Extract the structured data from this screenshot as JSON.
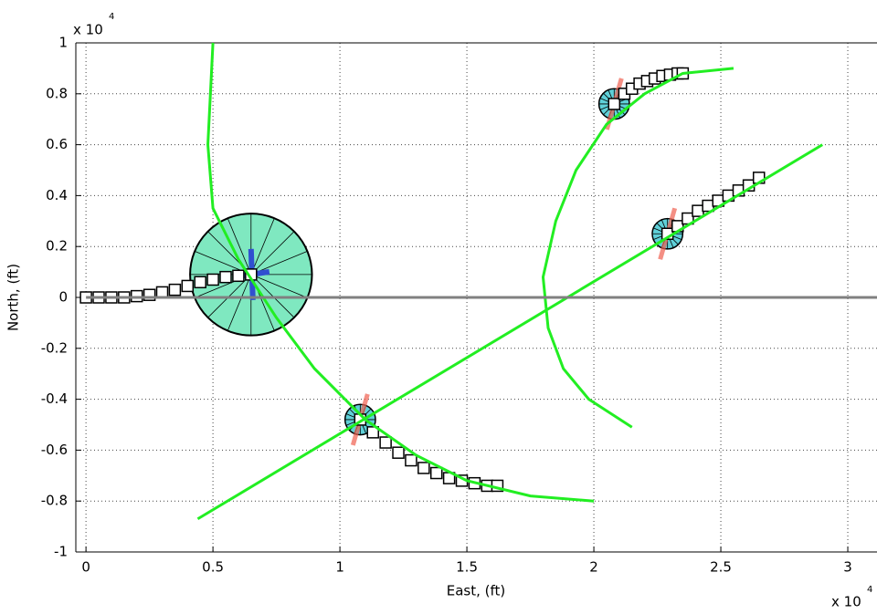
{
  "chart_data": {
    "type": "line",
    "x_label": "East, (ft)",
    "y_label": "North, (ft)",
    "x_multiplier": "x 10",
    "x_exponent": "4",
    "y_multiplier": "x 10",
    "y_exponent": "4",
    "xlim": [
      -0.04,
      3.115
    ],
    "ylim": [
      -1,
      1
    ],
    "xticks": [
      0,
      0.5,
      1,
      1.5,
      2,
      2.5,
      3
    ],
    "yticks": [
      -1,
      -0.8,
      -0.6,
      -0.4,
      -0.2,
      0,
      0.2,
      0.4,
      0.6,
      0.8,
      1
    ],
    "grid": true,
    "series": [
      {
        "color": "#000000",
        "marker": "square",
        "x": [
          0.65,
          0.6,
          0.55,
          0.5,
          0.45,
          0.4,
          0.35,
          0.3,
          0.25,
          0.2,
          0.15,
          0.1,
          0.05,
          0
        ],
        "values": [
          0.09,
          0.085,
          0.08,
          0.07,
          0.06,
          0.045,
          0.03,
          0.02,
          0.01,
          0.005,
          0,
          0,
          0,
          0
        ]
      },
      {
        "color": "#000000",
        "marker": "square",
        "x": [
          1.08,
          1.13,
          1.18,
          1.23,
          1.28,
          1.33,
          1.38,
          1.43,
          1.48,
          1.53,
          1.58,
          1.62
        ],
        "values": [
          -0.48,
          -0.53,
          -0.57,
          -0.61,
          -0.64,
          -0.67,
          -0.69,
          -0.71,
          -0.72,
          -0.73,
          -0.74,
          -0.74
        ]
      },
      {
        "color": "#000000",
        "marker": "square",
        "x": [
          2.08,
          2.12,
          2.15,
          2.18,
          2.21,
          2.24,
          2.27,
          2.3,
          2.33,
          2.35
        ],
        "values": [
          0.76,
          0.8,
          0.82,
          0.84,
          0.85,
          0.86,
          0.87,
          0.875,
          0.88,
          0.88
        ]
      },
      {
        "color": "#000000",
        "marker": "square",
        "x": [
          2.29,
          2.33,
          2.37,
          2.41,
          2.45,
          2.49,
          2.53,
          2.57,
          2.61,
          2.65
        ],
        "values": [
          0.25,
          0.28,
          0.31,
          0.34,
          0.36,
          0.38,
          0.4,
          0.42,
          0.44,
          0.47
        ]
      },
      {
        "color": "#22ee22",
        "marker": "none",
        "x": [
          0.44,
          2.9
        ],
        "values": [
          -0.87,
          0.6
        ]
      },
      {
        "color": "#22ee22",
        "marker": "none",
        "x": [
          0.5,
          0.48,
          0.5,
          0.6,
          0.75,
          0.9,
          1.1,
          1.3,
          1.5,
          1.75,
          2.0
        ],
        "values": [
          1.0,
          0.6,
          0.35,
          0.15,
          -0.08,
          -0.28,
          -0.48,
          -0.62,
          -0.72,
          -0.78,
          -0.8
        ]
      },
      {
        "color": "#22ee22",
        "marker": "none",
        "x": [
          2.55,
          2.35,
          2.2,
          2.05,
          1.93,
          1.85,
          1.8,
          1.82,
          1.88,
          1.98,
          2.15
        ],
        "values": [
          0.9,
          0.88,
          0.8,
          0.68,
          0.5,
          0.3,
          0.08,
          -0.12,
          -0.28,
          -0.4,
          -0.51
        ]
      },
      {
        "color": "#808080",
        "marker": "none",
        "x": [
          0,
          3.115
        ],
        "values": [
          0,
          0
        ]
      }
    ]
  }
}
